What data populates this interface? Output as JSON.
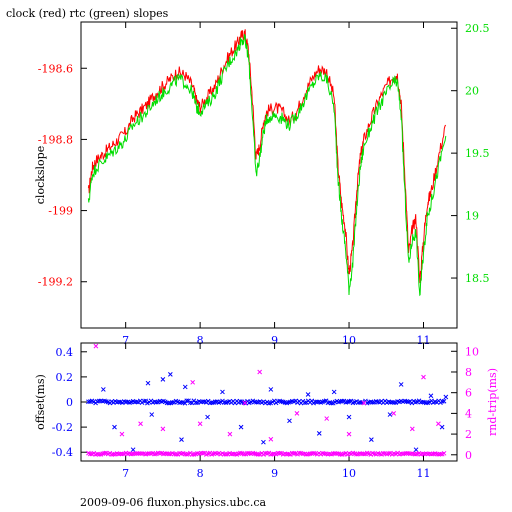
{
  "title": "clock (red) rtc (green) slopes",
  "footer": "2009-09-06 fluxon.physics.ubc.ca",
  "colors": {
    "red": "#ff0000",
    "green": "#00dd00",
    "blue": "#0000ff",
    "magenta": "#ff00ff",
    "axis": "#000000"
  },
  "chart_data": [
    {
      "type": "line",
      "xlim": [
        6.4,
        11.45
      ],
      "ylim": [
        -199.33,
        -198.47
      ],
      "y2lim": [
        18.1,
        20.55
      ],
      "x_ticks": [
        7,
        8,
        9,
        10,
        11
      ],
      "x_tick_labels": [
        "7",
        "8",
        "9",
        "10",
        "11"
      ],
      "y_ticks": [
        -198.6,
        -198.8,
        -199,
        -199.2
      ],
      "y_tick_labels": [
        "-198.6",
        "-198.8",
        "-199",
        "-199.2"
      ],
      "y2_ticks": [
        20.5,
        20,
        19.5,
        19,
        18.5
      ],
      "y2_tick_labels": [
        "20.5",
        "20",
        "19.5",
        "19",
        "18.5"
      ],
      "ylabel": "clockslope",
      "series": [
        {
          "axis": "left",
          "color": "#ff0000",
          "x": [
            6.5,
            6.55,
            6.6,
            6.7,
            6.8,
            6.9,
            7.0,
            7.1,
            7.2,
            7.3,
            7.4,
            7.5,
            7.6,
            7.7,
            7.8,
            7.9,
            7.95,
            8.0,
            8.1,
            8.2,
            8.3,
            8.4,
            8.5,
            8.55,
            8.6,
            8.65,
            8.7,
            8.75,
            8.8,
            8.85,
            8.9,
            9.0,
            9.1,
            9.2,
            9.3,
            9.4,
            9.5,
            9.6,
            9.7,
            9.8,
            9.85,
            9.9,
            9.95,
            10.0,
            10.05,
            10.1,
            10.15,
            10.2,
            10.3,
            10.4,
            10.5,
            10.6,
            10.65,
            10.7,
            10.75,
            10.8,
            10.85,
            10.9,
            10.95,
            11.0,
            11.05,
            11.1,
            11.2,
            11.3
          ],
          "y": [
            -198.95,
            -198.88,
            -198.86,
            -198.84,
            -198.82,
            -198.8,
            -198.78,
            -198.74,
            -198.72,
            -198.7,
            -198.67,
            -198.65,
            -198.63,
            -198.61,
            -198.62,
            -198.65,
            -198.69,
            -198.71,
            -198.68,
            -198.65,
            -198.6,
            -198.56,
            -198.53,
            -198.51,
            -198.5,
            -198.55,
            -198.68,
            -198.85,
            -198.82,
            -198.75,
            -198.72,
            -198.71,
            -198.72,
            -198.75,
            -198.72,
            -198.67,
            -198.63,
            -198.6,
            -198.61,
            -198.68,
            -198.87,
            -198.98,
            -199.05,
            -199.18,
            -199.1,
            -198.95,
            -198.85,
            -198.8,
            -198.74,
            -198.69,
            -198.65,
            -198.62,
            -198.62,
            -198.7,
            -198.9,
            -199.12,
            -199.05,
            -199.02,
            -199.2,
            -199.08,
            -198.98,
            -198.95,
            -198.85,
            -198.76
          ]
        },
        {
          "axis": "left",
          "color": "#00dd00",
          "x": [
            6.5,
            6.55,
            6.6,
            6.7,
            6.8,
            6.9,
            7.0,
            7.1,
            7.2,
            7.3,
            7.4,
            7.5,
            7.6,
            7.7,
            7.8,
            7.9,
            7.95,
            8.0,
            8.1,
            8.2,
            8.3,
            8.4,
            8.5,
            8.55,
            8.6,
            8.65,
            8.7,
            8.75,
            8.8,
            8.85,
            8.9,
            9.0,
            9.1,
            9.2,
            9.3,
            9.4,
            9.5,
            9.6,
            9.7,
            9.8,
            9.85,
            9.9,
            9.95,
            10.0,
            10.05,
            10.1,
            10.15,
            10.2,
            10.3,
            10.4,
            10.5,
            10.6,
            10.65,
            10.7,
            10.75,
            10.8,
            10.85,
            10.9,
            10.95,
            11.0,
            11.05,
            11.1,
            11.2,
            11.3
          ],
          "y": [
            -198.98,
            -198.9,
            -198.88,
            -198.86,
            -198.84,
            -198.82,
            -198.8,
            -198.76,
            -198.74,
            -198.72,
            -198.69,
            -198.67,
            -198.65,
            -198.63,
            -198.64,
            -198.67,
            -198.71,
            -198.72,
            -198.7,
            -198.67,
            -198.62,
            -198.58,
            -198.55,
            -198.52,
            -198.52,
            -198.57,
            -198.72,
            -198.9,
            -198.85,
            -198.78,
            -198.74,
            -198.73,
            -198.74,
            -198.76,
            -198.73,
            -198.69,
            -198.65,
            -198.62,
            -198.63,
            -198.71,
            -198.9,
            -199.02,
            -199.1,
            -199.22,
            -199.15,
            -199.0,
            -198.88,
            -198.82,
            -198.76,
            -198.71,
            -198.67,
            -198.64,
            -198.64,
            -198.73,
            -198.95,
            -199.15,
            -199.08,
            -199.06,
            -199.24,
            -199.12,
            -199.02,
            -198.98,
            -198.88,
            -198.79
          ]
        }
      ]
    },
    {
      "type": "scatter",
      "xlim": [
        6.4,
        11.45
      ],
      "ylim": [
        -0.47,
        0.47
      ],
      "y2lim": [
        -0.6,
        10.8
      ],
      "x_ticks": [
        7,
        8,
        9,
        10,
        11
      ],
      "x_tick_labels": [
        "7",
        "8",
        "9",
        "10",
        "11"
      ],
      "y_ticks": [
        0.4,
        0.2,
        0,
        -0.2,
        -0.4
      ],
      "y_tick_labels": [
        "0.4",
        "0.2",
        "0",
        "-0.2",
        "-0.4"
      ],
      "y2_ticks": [
        10,
        8,
        6,
        4,
        2,
        0
      ],
      "y2_tick_labels": [
        "10",
        "8",
        "6",
        "4",
        "2",
        "0"
      ],
      "ylabel": "offset(ms)",
      "y2label": "rnd-trip(ms)",
      "series": [
        {
          "axis": "left",
          "color": "#0000ff",
          "marker": "x",
          "band_y": 0,
          "band_spread": 0.02,
          "band_count": 200,
          "outliers_x": [
            6.7,
            6.85,
            7.1,
            7.3,
            7.35,
            7.5,
            7.6,
            7.75,
            7.8,
            8.1,
            8.3,
            8.55,
            8.85,
            8.95,
            9.2,
            9.45,
            9.6,
            9.8,
            10.0,
            10.3,
            10.55,
            10.7,
            10.9,
            11.1,
            11.25,
            11.3
          ],
          "outliers_y": [
            0.1,
            -0.2,
            -0.38,
            0.15,
            -0.1,
            0.18,
            0.22,
            -0.3,
            0.12,
            -0.12,
            0.08,
            -0.2,
            -0.32,
            0.1,
            -0.15,
            0.06,
            -0.25,
            0.08,
            -0.12,
            -0.3,
            -0.1,
            0.14,
            -0.38,
            0.05,
            -0.2,
            0.04
          ]
        },
        {
          "axis": "right",
          "color": "#ff00ff",
          "marker": "x",
          "band_y": 0.1,
          "band_spread": 0.15,
          "band_count": 200,
          "outliers_x": [
            6.6,
            6.95,
            7.2,
            7.5,
            7.9,
            8.0,
            8.4,
            8.6,
            8.8,
            8.95,
            9.3,
            9.7,
            10.0,
            10.2,
            10.6,
            10.85,
            11.0,
            11.2
          ],
          "outliers_y": [
            10.5,
            2,
            3,
            2.5,
            7,
            3,
            2,
            5,
            8,
            1.5,
            4,
            3.5,
            2,
            5,
            4,
            2.5,
            7.5,
            3
          ]
        }
      ]
    }
  ]
}
